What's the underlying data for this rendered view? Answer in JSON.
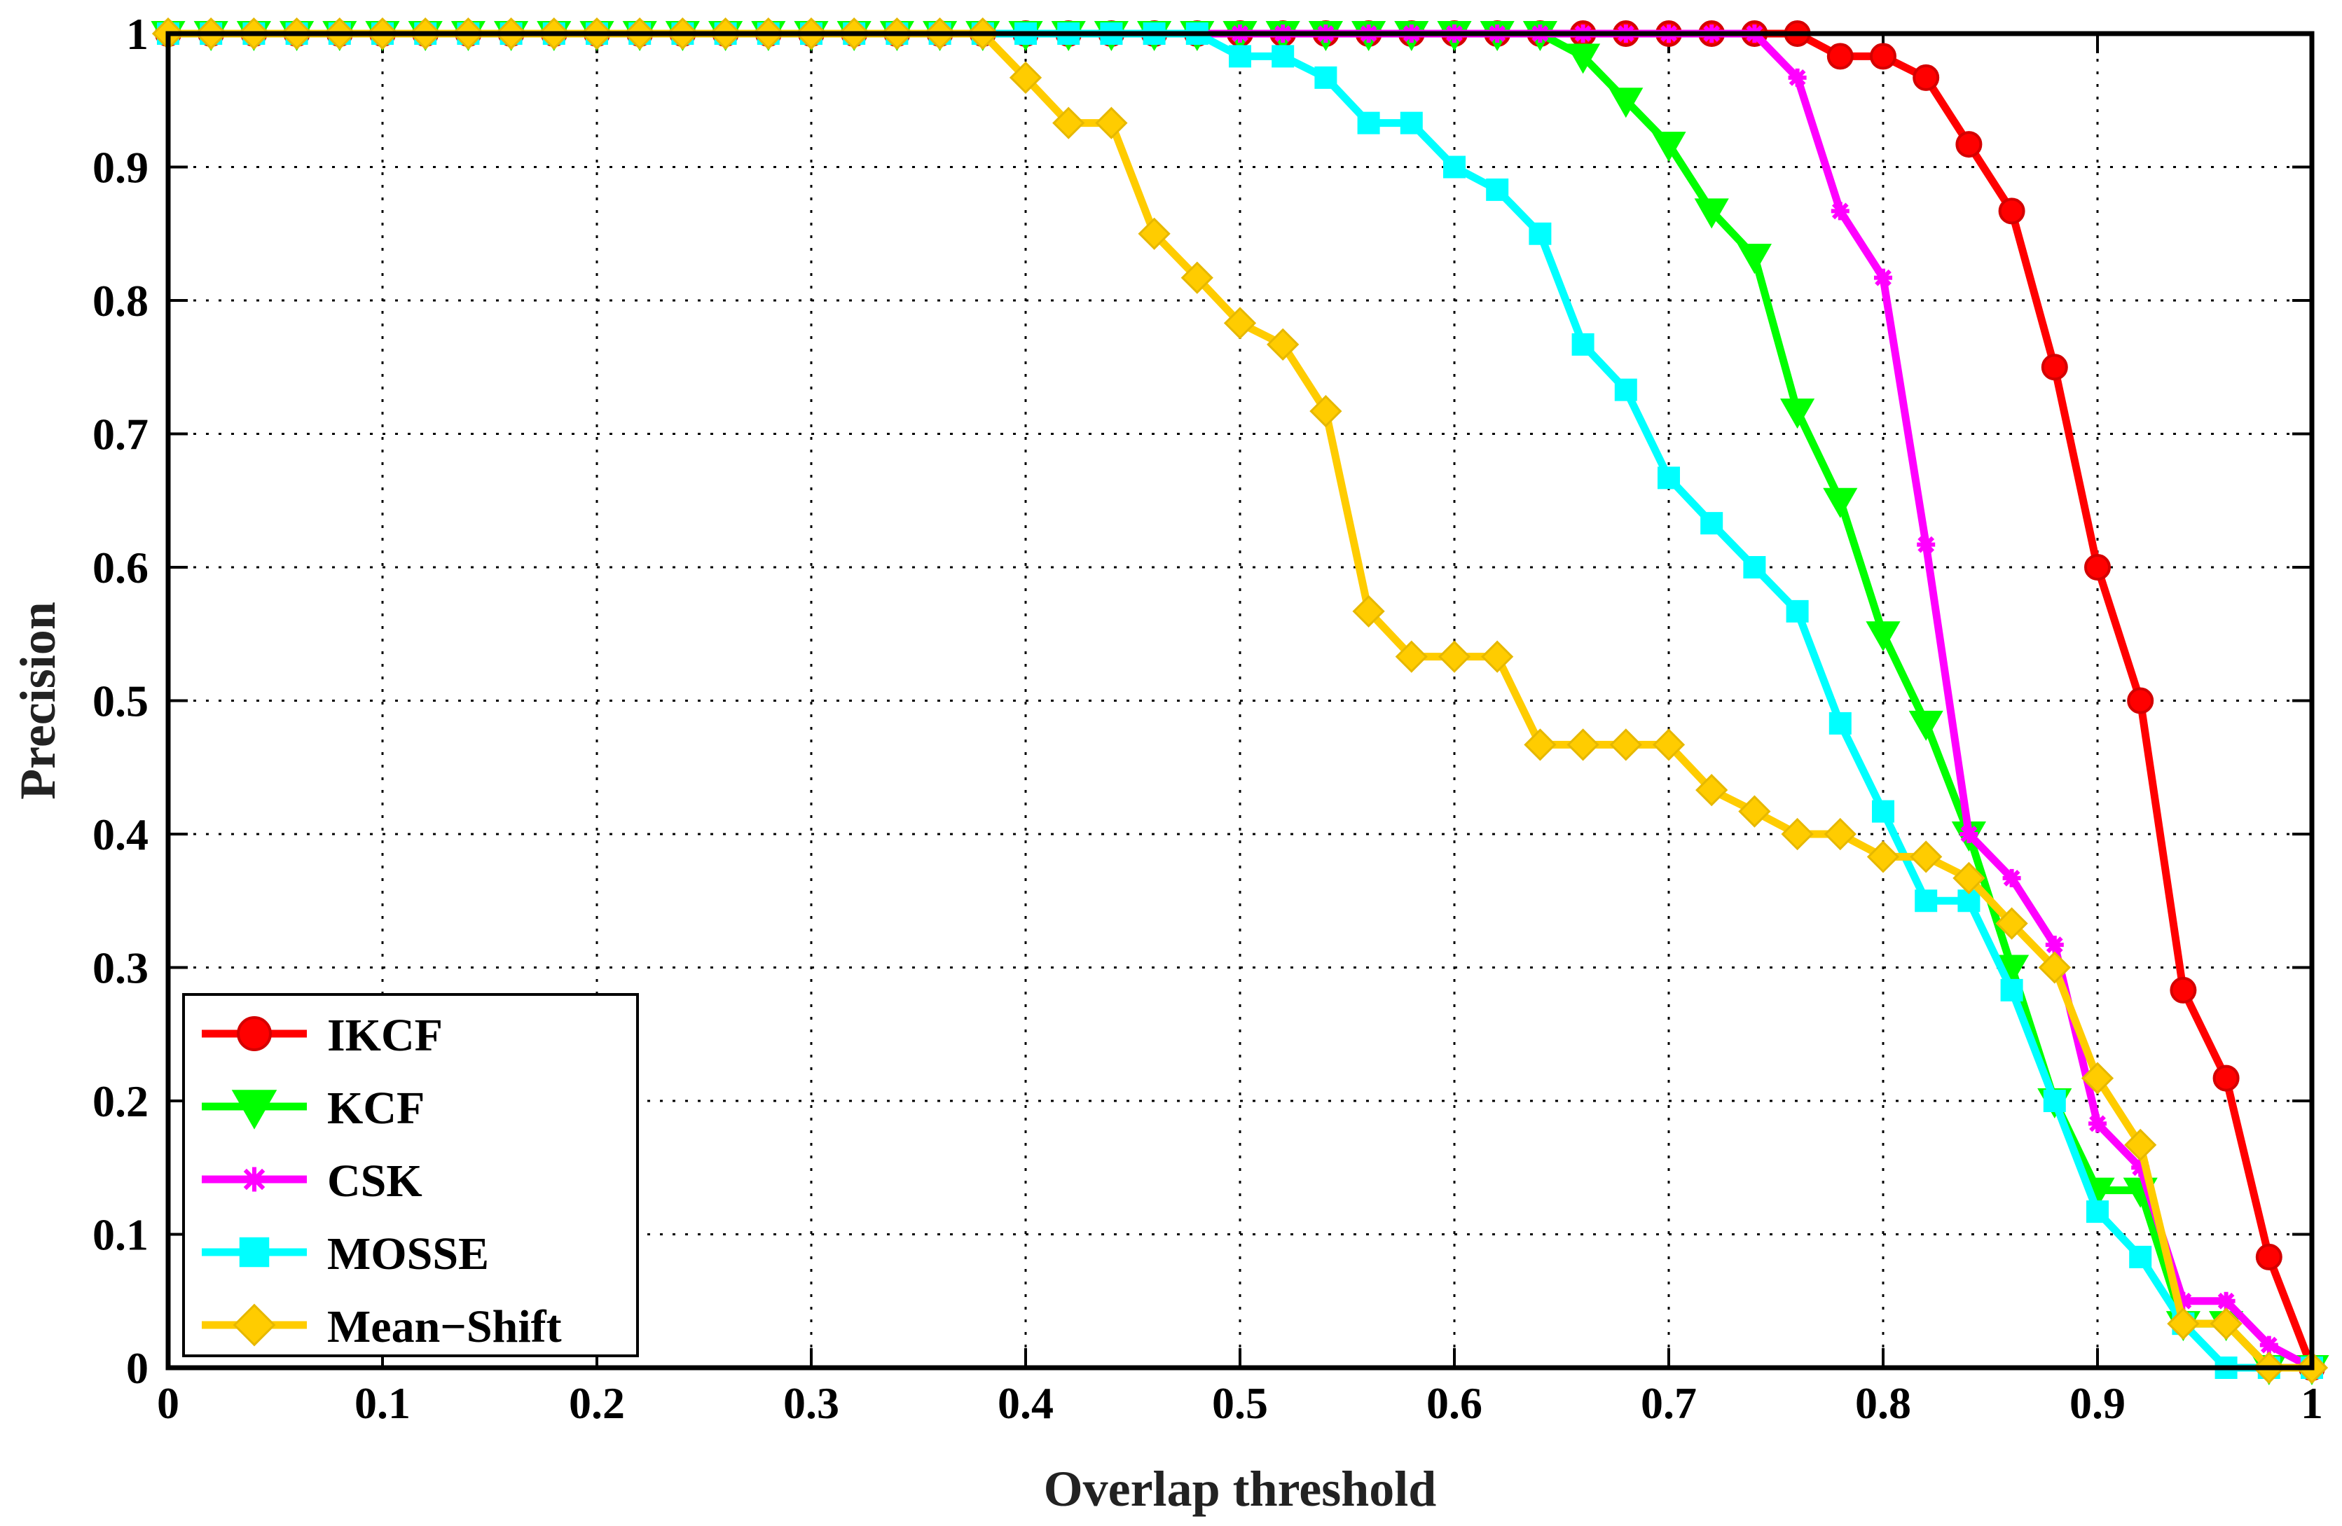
{
  "chart_data": {
    "type": "line",
    "title": "",
    "xlabel": "Overlap threshold",
    "ylabel": "Precision",
    "xlim": [
      0,
      1
    ],
    "ylim": [
      0,
      1
    ],
    "grid": true,
    "legend_position": "bottom-left",
    "x_ticks": [
      "0",
      "0.1",
      "0.2",
      "0.3",
      "0.4",
      "0.5",
      "0.6",
      "0.7",
      "0.8",
      "0.9",
      "1"
    ],
    "y_ticks": [
      "0",
      "0.1",
      "0.2",
      "0.3",
      "0.4",
      "0.5",
      "0.6",
      "0.7",
      "0.8",
      "0.9",
      "1"
    ],
    "x": [
      0,
      0.02,
      0.04,
      0.06,
      0.08,
      0.1,
      0.12,
      0.14,
      0.16,
      0.18,
      0.2,
      0.22,
      0.24,
      0.26,
      0.28,
      0.3,
      0.32,
      0.34,
      0.36,
      0.38,
      0.4,
      0.42,
      0.44,
      0.46,
      0.48,
      0.5,
      0.52,
      0.54,
      0.56,
      0.58,
      0.6,
      0.62,
      0.64,
      0.66,
      0.68,
      0.7,
      0.72,
      0.74,
      0.76,
      0.78,
      0.8,
      0.82,
      0.84,
      0.86,
      0.88,
      0.9,
      0.92,
      0.94,
      0.96,
      0.98,
      1.0
    ],
    "series": [
      {
        "name": "IKCF",
        "color": "#ff0000",
        "marker": "circle",
        "values": [
          1,
          1,
          1,
          1,
          1,
          1,
          1,
          1,
          1,
          1,
          1,
          1,
          1,
          1,
          1,
          1,
          1,
          1,
          1,
          1,
          1,
          1,
          1,
          1,
          1,
          1,
          1,
          1,
          1,
          1,
          1,
          1,
          1,
          1,
          1,
          1,
          1,
          1,
          1,
          0.983,
          0.983,
          0.967,
          0.917,
          0.867,
          0.75,
          0.6,
          0.5,
          0.283,
          0.217,
          0.083,
          0
        ]
      },
      {
        "name": "KCF",
        "color": "#00ff00",
        "marker": "triangle-down",
        "values": [
          1,
          1,
          1,
          1,
          1,
          1,
          1,
          1,
          1,
          1,
          1,
          1,
          1,
          1,
          1,
          1,
          1,
          1,
          1,
          1,
          1,
          1,
          1,
          1,
          1,
          1,
          1,
          1,
          1,
          1,
          1,
          1,
          1,
          0.983,
          0.95,
          0.917,
          0.867,
          0.833,
          0.717,
          0.65,
          0.55,
          0.483,
          0.4,
          0.3,
          0.2,
          0.133,
          0.133,
          0.033,
          0.033,
          0,
          0
        ]
      },
      {
        "name": "CSK",
        "color": "#ff00ff",
        "marker": "star",
        "values": [
          1,
          1,
          1,
          1,
          1,
          1,
          1,
          1,
          1,
          1,
          1,
          1,
          1,
          1,
          1,
          1,
          1,
          1,
          1,
          1,
          1,
          1,
          1,
          1,
          1,
          1,
          1,
          1,
          1,
          1,
          1,
          1,
          1,
          1,
          1,
          1,
          1,
          1,
          0.967,
          0.867,
          0.817,
          0.617,
          0.4,
          0.367,
          0.317,
          0.183,
          0.15,
          0.05,
          0.05,
          0.017,
          0
        ]
      },
      {
        "name": "MOSSE",
        "color": "#00ffff",
        "marker": "square",
        "values": [
          1,
          1,
          1,
          1,
          1,
          1,
          1,
          1,
          1,
          1,
          1,
          1,
          1,
          1,
          1,
          1,
          1,
          1,
          1,
          1,
          1,
          1,
          1,
          1,
          1,
          0.983,
          0.983,
          0.967,
          0.933,
          0.933,
          0.9,
          0.883,
          0.85,
          0.767,
          0.733,
          0.667,
          0.633,
          0.6,
          0.567,
          0.483,
          0.417,
          0.35,
          0.35,
          0.283,
          0.2,
          0.117,
          0.083,
          0.033,
          0,
          0,
          0
        ]
      },
      {
        "name": "Mean−Shift",
        "color": "#ffcc00",
        "marker": "diamond",
        "values": [
          1,
          1,
          1,
          1,
          1,
          1,
          1,
          1,
          1,
          1,
          1,
          1,
          1,
          1,
          1,
          1,
          1,
          1,
          1,
          1,
          0.967,
          0.933,
          0.933,
          0.85,
          0.817,
          0.783,
          0.767,
          0.717,
          0.567,
          0.533,
          0.533,
          0.533,
          0.467,
          0.467,
          0.467,
          0.467,
          0.433,
          0.417,
          0.4,
          0.4,
          0.383,
          0.383,
          0.367,
          0.333,
          0.3,
          0.217,
          0.167,
          0.033,
          0.033,
          0,
          0
        ]
      }
    ]
  }
}
